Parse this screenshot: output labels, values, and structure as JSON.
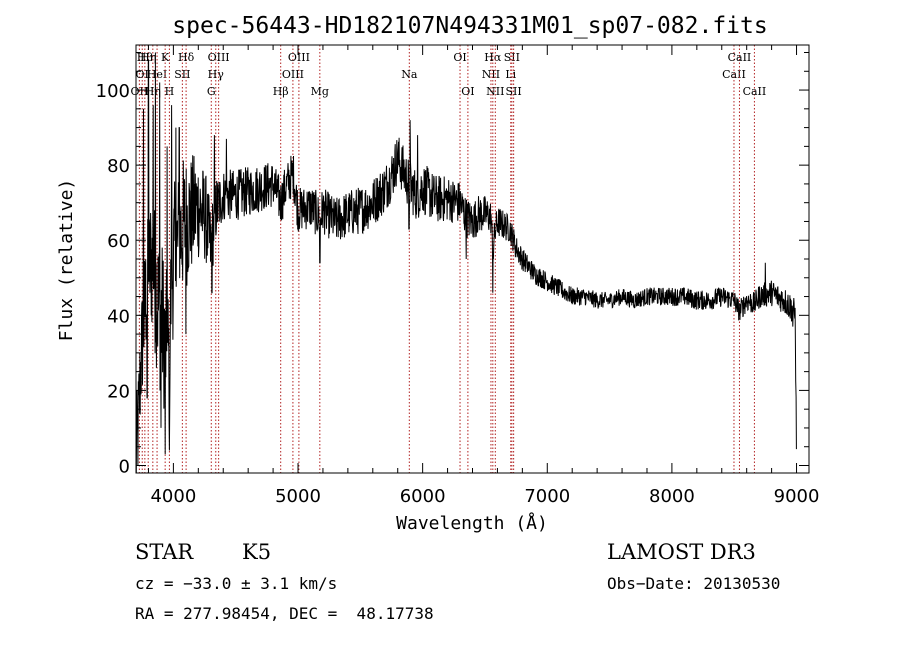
{
  "chart_data": {
    "type": "line",
    "title": "spec-56443-HD182107N494331M01_sp07-082.fits",
    "xlabel": "Wavelength (Å)",
    "ylabel": "Flux (relative)",
    "xlim": [
      3700,
      9100
    ],
    "ylim": [
      -2,
      112
    ],
    "xticks": [
      4000,
      5000,
      6000,
      7000,
      8000,
      9000
    ],
    "yticks": [
      0,
      20,
      40,
      60,
      80,
      100
    ],
    "spectrum_anchors": {
      "wavelength": [
        3700,
        3720,
        3740,
        3760,
        3790,
        3820,
        3850,
        3880,
        3900,
        3930,
        3950,
        3968,
        3980,
        4000,
        4030,
        4060,
        4080,
        4100,
        4150,
        4200,
        4260,
        4300,
        4340,
        4400,
        4500,
        4600,
        4700,
        4800,
        4861,
        4900,
        4960,
        5000,
        5100,
        5175,
        5200,
        5300,
        5400,
        5500,
        5600,
        5700,
        5760,
        5800,
        5890,
        5950,
        6000,
        6100,
        6200,
        6300,
        6350,
        6400,
        6450,
        6500,
        6550,
        6563,
        6580,
        6600,
        6650,
        6700,
        6750,
        6800,
        6900,
        7000,
        7100,
        7200,
        7300,
        7400,
        7500,
        7600,
        7700,
        7800,
        7900,
        8000,
        8100,
        8200,
        8300,
        8400,
        8500,
        8542,
        8600,
        8662,
        8700,
        8800,
        8900,
        8960,
        8990,
        9000
      ],
      "flux": [
        2,
        12,
        28,
        38,
        48,
        55,
        50,
        42,
        40,
        35,
        30,
        28,
        45,
        55,
        58,
        62,
        64,
        65,
        67,
        69,
        66,
        58,
        68,
        72,
        72,
        73,
        74,
        75,
        70,
        74,
        78,
        68,
        69,
        66,
        68,
        65,
        67,
        68,
        70,
        74,
        78,
        82,
        75,
        72,
        74,
        71,
        71,
        70,
        66,
        65,
        67,
        67,
        66,
        56,
        62,
        65,
        64,
        63,
        58,
        55,
        51,
        49,
        47,
        45,
        45,
        44,
        44,
        45,
        44,
        45,
        45,
        45,
        45,
        44,
        44,
        45,
        44,
        41,
        44,
        43,
        45,
        46,
        44,
        42,
        40,
        0
      ]
    },
    "noise_amplitude": {
      "wavelength": [
        3700,
        3900,
        4100,
        4400,
        5000,
        6000,
        6500,
        6800,
        7000,
        7500,
        8500,
        9000
      ],
      "amplitude": [
        14,
        22,
        18,
        7,
        6,
        7,
        5,
        3,
        2.6,
        2.2,
        2.8,
        4
      ]
    },
    "deep_features": [
      {
        "wavelength": 3715,
        "flux": 0
      },
      {
        "wavelength": 3790,
        "flux": 18
      },
      {
        "wavelength": 3900,
        "flux": 10
      },
      {
        "wavelength": 3934,
        "flux": 3
      },
      {
        "wavelength": 3968,
        "flux": 4
      },
      {
        "wavelength": 4101,
        "flux": 35
      },
      {
        "wavelength": 4310,
        "flux": 46
      },
      {
        "wavelength": 5175,
        "flux": 54
      },
      {
        "wavelength": 5890,
        "flux": 63
      },
      {
        "wavelength": 6350,
        "flux": 55
      },
      {
        "wavelength": 6563,
        "flux": 46
      },
      {
        "wavelength": 8970,
        "flux": 37
      }
    ],
    "spikes": [
      {
        "wavelength": 3760,
        "flux": 95
      },
      {
        "wavelength": 3800,
        "flux": 108
      },
      {
        "wavelength": 3837,
        "flux": 96
      },
      {
        "wavelength": 3855,
        "flux": 110
      },
      {
        "wavelength": 3890,
        "flux": 102
      },
      {
        "wavelength": 3950,
        "flux": 85
      },
      {
        "wavelength": 3985,
        "flux": 96
      },
      {
        "wavelength": 4020,
        "flux": 90
      },
      {
        "wavelength": 4047,
        "flux": 90
      },
      {
        "wavelength": 4330,
        "flux": 88
      },
      {
        "wavelength": 4425,
        "flux": 87
      },
      {
        "wavelength": 5900,
        "flux": 92
      },
      {
        "wavelength": 5960,
        "flux": 88
      },
      {
        "wavelength": 8750,
        "flux": 54
      }
    ],
    "line_markers": [
      {
        "wavelength": 3727,
        "label": "OII",
        "row": 3
      },
      {
        "wavelength": 3750,
        "label": "OI",
        "row": 2
      },
      {
        "wavelength": 3771,
        "label": "Hθ",
        "row": 1
      },
      {
        "wavelength": 3798,
        "label": "Hη",
        "row": 1
      },
      {
        "wavelength": 3835,
        "label": "Hη",
        "row": 3
      },
      {
        "wavelength": 3869,
        "label": "HeI",
        "row": 2
      },
      {
        "wavelength": 3934,
        "label": "K",
        "row": 1
      },
      {
        "wavelength": 3968,
        "label": "H",
        "row": 3
      },
      {
        "wavelength": 4072,
        "label": "SII",
        "row": 2
      },
      {
        "wavelength": 4102,
        "label": "Hδ",
        "row": 1
      },
      {
        "wavelength": 4304,
        "label": "G",
        "row": 3
      },
      {
        "wavelength": 4340,
        "label": "Hγ",
        "row": 2
      },
      {
        "wavelength": 4363,
        "label": "OIII",
        "row": 1
      },
      {
        "wavelength": 4861,
        "label": "Hβ",
        "row": 3
      },
      {
        "wavelength": 4959,
        "label": "OIII",
        "row": 2
      },
      {
        "wavelength": 5007,
        "label": "OIII",
        "row": 1
      },
      {
        "wavelength": 5175,
        "label": "Mg",
        "row": 3
      },
      {
        "wavelength": 5893,
        "label": "Na",
        "row": 2
      },
      {
        "wavelength": 6300,
        "label": "OI",
        "row": 1
      },
      {
        "wavelength": 6363,
        "label": "OI",
        "row": 3
      },
      {
        "wavelength": 6548,
        "label": "NII",
        "row": 2
      },
      {
        "wavelength": 6563,
        "label": "Hα",
        "row": 1
      },
      {
        "wavelength": 6583,
        "label": "NII",
        "row": 3
      },
      {
        "wavelength": 6707,
        "label": "Li",
        "row": 2
      },
      {
        "wavelength": 6716,
        "label": "SII",
        "row": 1
      },
      {
        "wavelength": 6730,
        "label": "SII",
        "row": 3
      },
      {
        "wavelength": 8498,
        "label": "CaII",
        "row": 2
      },
      {
        "wavelength": 8542,
        "label": "CaII",
        "row": 1
      },
      {
        "wavelength": 8662,
        "label": "CaII",
        "row": 3
      }
    ]
  },
  "info": {
    "object_class": "STAR",
    "subclass": "K5",
    "survey": "LAMOST DR3",
    "cz": "cz = −33.0 ± 3.1 km/s",
    "obs_date": "Obs−Date: 20130530",
    "coords": "RA = 277.98454, DEC =  48.17738"
  },
  "colors": {
    "spectrum": "#000000",
    "marker_line": "#b22222",
    "text": "#000000",
    "background": "#ffffff"
  }
}
